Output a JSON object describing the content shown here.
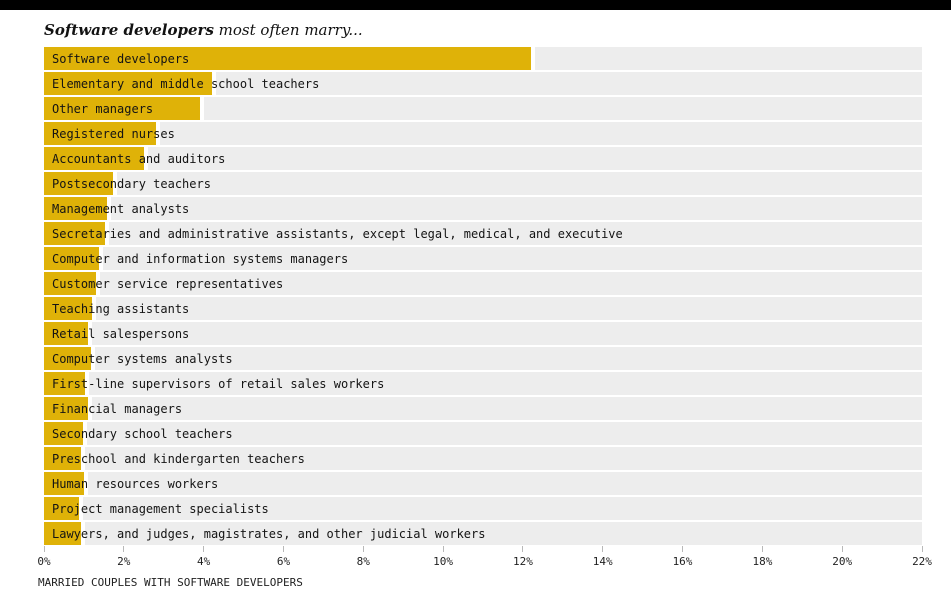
{
  "title": {
    "emphasis": "Software developers",
    "rest": " most often marry..."
  },
  "chart_data": {
    "type": "bar",
    "orientation": "horizontal",
    "title": "Software developers most often marry...",
    "xlabel": "MARRIED COUPLES WITH SOFTWARE DEVELOPERS",
    "ylabel": "",
    "xlim": [
      0,
      22
    ],
    "xticks": [
      "0%",
      "2%",
      "4%",
      "6%",
      "8%",
      "10%",
      "12%",
      "14%",
      "16%",
      "18%",
      "20%",
      "22%"
    ],
    "xtick_values": [
      0,
      2,
      4,
      6,
      8,
      10,
      12,
      14,
      16,
      18,
      20,
      22
    ],
    "grid": false,
    "legend": false,
    "bar_color": "#DFB208",
    "track_color": "#EDEDED",
    "categories": [
      "Software developers",
      "Elementary and middle school teachers",
      "Other managers",
      "Registered nurses",
      "Accountants and auditors",
      "Postsecondary teachers",
      "Management analysts",
      "Secretaries and administrative assistants, except legal, medical, and executive",
      "Computer and information systems managers",
      "Customer service representatives",
      "Teaching assistants",
      "Retail salespersons",
      "Computer systems analysts",
      "First-line supervisors of retail sales workers",
      "Financial managers",
      "Secondary school teachers",
      "Preschool and kindergarten teachers",
      "Human resources workers",
      "Project management specialists",
      "Lawyers, and judges, magistrates, and other judicial workers"
    ],
    "values": [
      12.2,
      4.2,
      3.9,
      2.8,
      2.5,
      1.73,
      1.58,
      1.53,
      1.38,
      1.3,
      1.2,
      1.11,
      1.17,
      1.03,
      1.1,
      0.98,
      0.92,
      1.0,
      0.88,
      0.92
    ],
    "value_unit": "%"
  }
}
